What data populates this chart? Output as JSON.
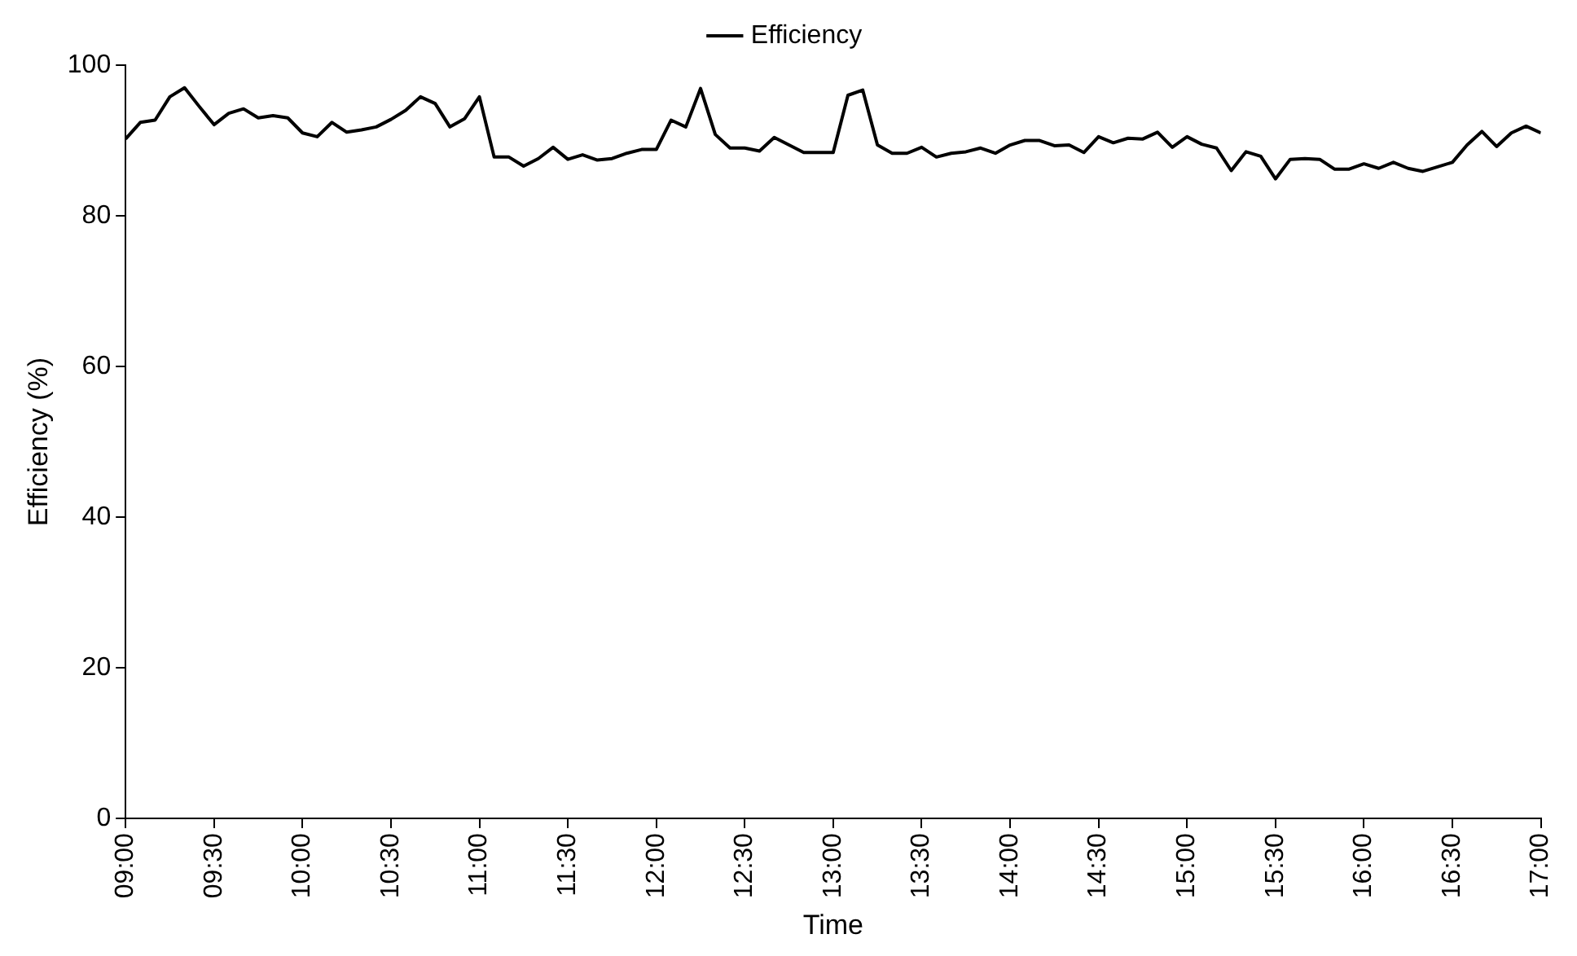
{
  "chart_data": {
    "type": "line",
    "xlabel": "Time",
    "ylabel": "Efficiency (%)",
    "legend": "top",
    "grid": false,
    "marker": "none",
    "line_style": "solid",
    "xlim": [
      9,
      17
    ],
    "ylim": [
      0,
      100
    ],
    "yticks": [
      0,
      20,
      40,
      60,
      80,
      100
    ],
    "xticks": [
      {
        "value": 9,
        "label": "09:00"
      },
      {
        "value": 9.5,
        "label": "09:30"
      },
      {
        "value": 10,
        "label": "10:00"
      },
      {
        "value": 10.5,
        "label": "10:30"
      },
      {
        "value": 11,
        "label": "11:00"
      },
      {
        "value": 11.5,
        "label": "11:30"
      },
      {
        "value": 12,
        "label": "12:00"
      },
      {
        "value": 12.5,
        "label": "12:30"
      },
      {
        "value": 13,
        "label": "13:00"
      },
      {
        "value": 13.5,
        "label": "13:30"
      },
      {
        "value": 14,
        "label": "14:00"
      },
      {
        "value": 14.5,
        "label": "14:30"
      },
      {
        "value": 15,
        "label": "15:00"
      },
      {
        "value": 15.5,
        "label": "15:30"
      },
      {
        "value": 16,
        "label": "16:00"
      },
      {
        "value": 16.5,
        "label": "16:30"
      },
      {
        "value": 17,
        "label": "17:00"
      }
    ],
    "x": [
      9,
      9.0833,
      9.1667,
      9.25,
      9.3333,
      9.4167,
      9.5,
      9.5833,
      9.6667,
      9.75,
      9.8333,
      9.9167,
      10,
      10.0833,
      10.1667,
      10.25,
      10.3333,
      10.4167,
      10.5,
      10.5833,
      10.6667,
      10.75,
      10.8333,
      10.9167,
      11,
      11.0833,
      11.1667,
      11.25,
      11.3333,
      11.4167,
      11.5,
      11.5833,
      11.6667,
      11.75,
      11.8333,
      11.9167,
      12,
      12.0833,
      12.1667,
      12.25,
      12.3333,
      12.4167,
      12.5,
      12.5833,
      12.6667,
      12.75,
      12.8333,
      12.9167,
      13,
      13.0833,
      13.1667,
      13.25,
      13.3333,
      13.4167,
      13.5,
      13.5833,
      13.6667,
      13.75,
      13.8333,
      13.9167,
      14,
      14.0833,
      14.1667,
      14.25,
      14.3333,
      14.4167,
      14.5,
      14.5833,
      14.6667,
      14.75,
      14.8333,
      14.9167,
      15,
      15.0833,
      15.1667,
      15.25,
      15.3333,
      15.4167,
      15.5,
      15.5833,
      15.6667,
      15.75,
      15.8333,
      15.9167,
      16,
      16.0833,
      16.1667,
      16.25,
      16.3333,
      16.4167,
      16.5,
      16.5833,
      16.6667,
      16.75,
      16.8333,
      16.9167,
      17
    ],
    "series": [
      {
        "name": "Efficiency",
        "color": "#000000",
        "values": [
          90.2,
          92.4,
          92.7,
          95.8,
          97.0,
          94.5,
          92.1,
          93.6,
          94.2,
          93.0,
          93.3,
          93.0,
          91.0,
          90.5,
          92.4,
          91.1,
          91.4,
          91.8,
          92.8,
          94.0,
          95.8,
          94.9,
          91.8,
          92.9,
          95.8,
          87.8,
          87.8,
          86.6,
          87.6,
          89.1,
          87.5,
          88.1,
          87.4,
          87.6,
          88.3,
          88.8,
          88.8,
          92.7,
          91.8,
          96.9,
          90.8,
          89.0,
          89.0,
          88.6,
          90.4,
          89.4,
          88.4,
          88.4,
          88.4,
          96.0,
          96.7,
          89.4,
          88.3,
          88.3,
          89.1,
          87.8,
          88.3,
          88.5,
          89.0,
          88.3,
          89.4,
          90.0,
          90.0,
          89.3,
          89.4,
          88.4,
          90.5,
          89.7,
          90.3,
          90.2,
          91.1,
          89.1,
          90.5,
          89.5,
          89.0,
          86.0,
          88.5,
          87.9,
          84.9,
          87.5,
          87.6,
          87.5,
          86.2,
          86.2,
          86.9,
          86.3,
          87.1,
          86.3,
          85.9,
          86.5,
          87.1,
          89.4,
          91.2,
          89.2,
          91.0,
          91.9,
          91.0
        ]
      }
    ]
  }
}
